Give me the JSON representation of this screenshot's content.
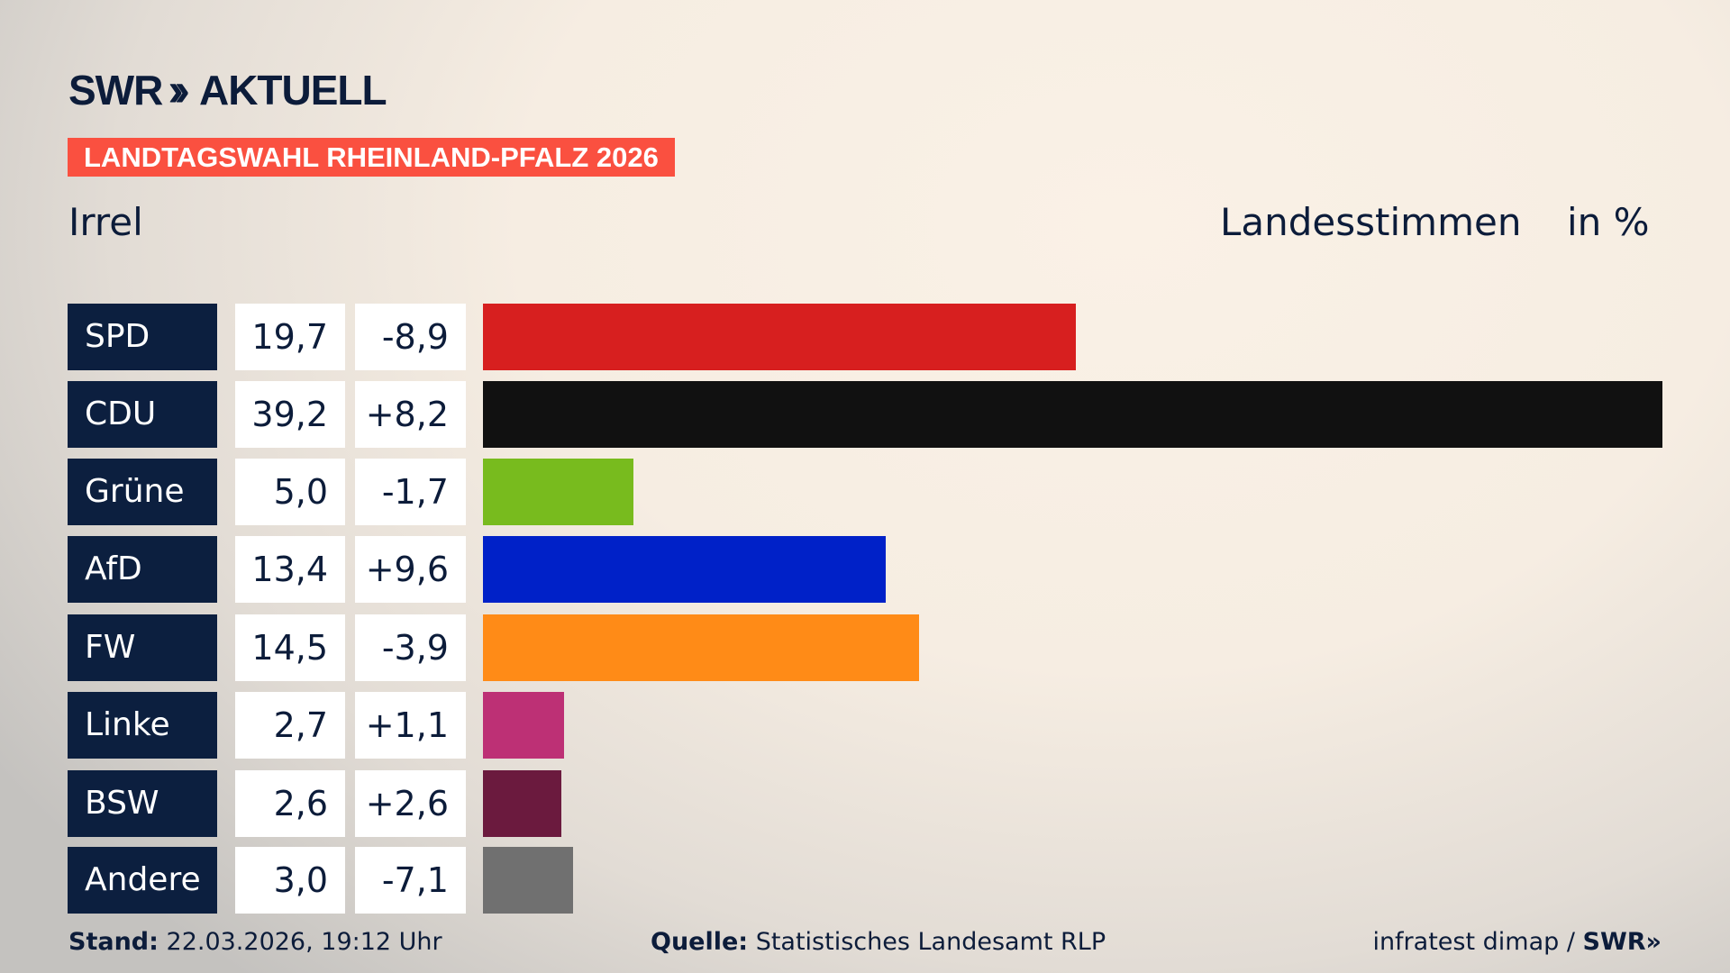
{
  "header": {
    "logo": "SWR» AKTUELL",
    "banner": "LANDTAGSWAHL RHEINLAND-PFALZ 2026",
    "place": "Irrel",
    "measure": "Landesstimmen",
    "unit": "in %"
  },
  "chart_data": {
    "type": "bar",
    "orientation": "horizontal",
    "xlim": [
      0,
      39.2
    ],
    "categories": [
      "SPD",
      "CDU",
      "Grüne",
      "AfD",
      "FW",
      "Linke",
      "BSW",
      "Andere"
    ],
    "values": [
      19.7,
      39.2,
      5.0,
      13.4,
      14.5,
      2.7,
      2.6,
      3.0
    ],
    "values_label": [
      "19,7",
      "39,2",
      "5,0",
      "13,4",
      "14,5",
      "2,7",
      "2,6",
      "3,0"
    ],
    "diff_label": [
      "-8,9",
      "+8,2",
      "-1,7",
      "+9,6",
      "-3,9",
      "+1,1",
      "+2,6",
      "-7,1"
    ],
    "diff": [
      -8.9,
      8.2,
      -1.7,
      9.6,
      -3.9,
      1.1,
      2.6,
      -7.1
    ],
    "colors": [
      "#d71f1f",
      "#111111",
      "#78bb1e",
      "#0021c8",
      "#ff8b17",
      "#bd3075",
      "#6b1a3e",
      "#707070"
    ]
  },
  "footer": {
    "stand_label": "Stand:",
    "stand": "22.03.2026, 19:12 Uhr",
    "quelle_label": "Quelle:",
    "quelle": "Statistisches Landesamt RLP",
    "credit": "infratest dimap / ",
    "credit_logo": "SWR»"
  }
}
